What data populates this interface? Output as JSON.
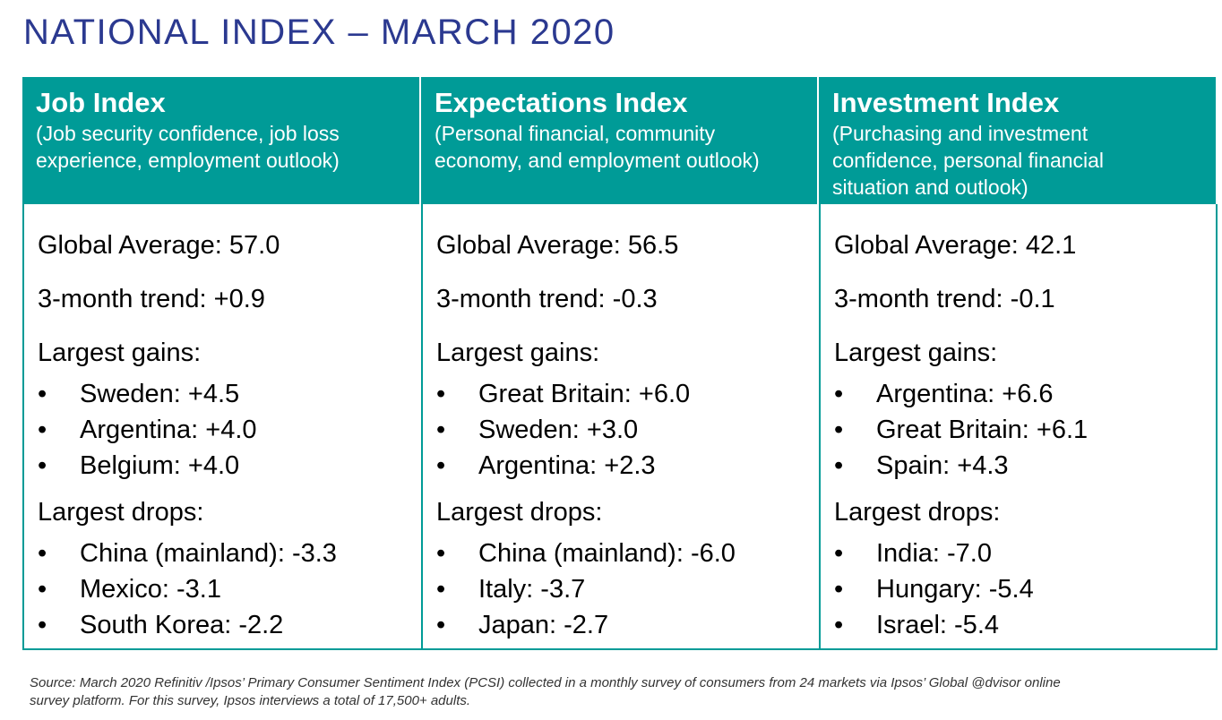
{
  "title": "NATIONAL INDEX – MARCH 2020",
  "columns": [
    {
      "heading": "Job Index",
      "sub_line1": "(Job security confidence, job loss",
      "sub_line2": "experience, employment outlook)",
      "sub_line3": "",
      "global_average": "Global Average: 57.0",
      "trend": "3-month trend: +0.9",
      "gains_label": "Largest gains:",
      "gains": [
        "Sweden: +4.5",
        "Argentina: +4.0",
        "Belgium: +4.0"
      ],
      "drops_label": "Largest drops:",
      "drops": [
        "China (mainland): -3.3",
        "Mexico: -3.1",
        "South Korea: -2.2"
      ]
    },
    {
      "heading": "Expectations Index",
      "sub_line1": "(Personal financial, community",
      "sub_line2": "economy, and employment outlook)",
      "sub_line3": "",
      "global_average": "Global Average: 56.5",
      "trend": "3-month trend: -0.3",
      "gains_label": "Largest gains:",
      "gains": [
        "Great Britain: +6.0",
        "Sweden: +3.0",
        "Argentina: +2.3"
      ],
      "drops_label": "Largest drops:",
      "drops": [
        "China (mainland): -6.0",
        "Italy: -3.7",
        "Japan: -2.7"
      ]
    },
    {
      "heading": "Investment Index",
      "sub_line1": "(Purchasing and investment",
      "sub_line2": "confidence, personal financial",
      "sub_line3": "situation and outlook)",
      "global_average": "Global Average: 42.1",
      "trend": "3-month trend: -0.1",
      "gains_label": "Largest gains:",
      "gains": [
        "Argentina: +6.6",
        "Great Britain: +6.1",
        "Spain: +4.3"
      ],
      "drops_label": "Largest drops:",
      "drops": [
        "India: -7.0",
        "Hungary: -5.4",
        "Israel: -5.4"
      ]
    }
  ],
  "bullet": "•",
  "footer": {
    "line1": "Source: March 2020 Refinitiv /Ipsos’ Primary Consumer Sentiment Index (PCSI) collected in a monthly survey of consumers from 24 markets via Ipsos’ Global @dvisor online",
    "line2": "survey platform. For this survey, Ipsos interviews a total of 17,500+ adults."
  },
  "colors": {
    "title": "#2b3990",
    "header_bg": "#009b97"
  }
}
